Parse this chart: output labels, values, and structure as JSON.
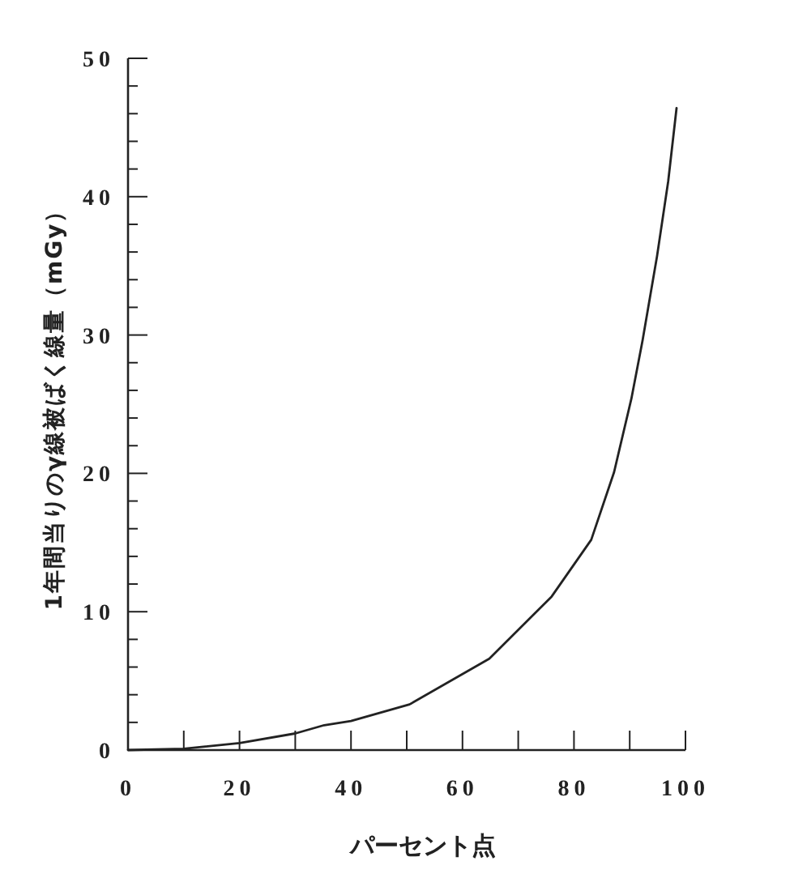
{
  "chart_data": {
    "type": "line",
    "xlabel": "パーセント点",
    "ylabel": "1年間当りのγ線被ばく線量（mGy）",
    "x": [
      0,
      10,
      20,
      30,
      35.2,
      40,
      50.5,
      64.8,
      76,
      83.1,
      87.2,
      90.3,
      92.3,
      94.9,
      96.9,
      98.4
    ],
    "series": [
      {
        "color": "#222222",
        "values": [
          0,
          0.1,
          0.5,
          1.2,
          1.8,
          2.1,
          3.3,
          6.6,
          11.1,
          15.2,
          20.1,
          25.4,
          29.6,
          35.7,
          41.1,
          46.4
        ]
      }
    ],
    "xlim": [
      0,
      100
    ],
    "ylim": [
      0,
      50
    ],
    "xticks": [
      0,
      {
        "value": 10,
        "label": null
      },
      20,
      {
        "value": 30,
        "label": null
      },
      40,
      {
        "value": 50,
        "label": null
      },
      60,
      {
        "value": 70,
        "label": null
      },
      80,
      {
        "value": 90,
        "label": null
      },
      100
    ],
    "yticks": [
      0,
      {
        "value": 2,
        "label": null
      },
      {
        "value": 4,
        "label": null
      },
      {
        "value": 6,
        "label": null
      },
      {
        "value": 8,
        "label": null
      },
      10,
      {
        "value": 12,
        "label": null
      },
      {
        "value": 14,
        "label": null
      },
      {
        "value": 16,
        "label": null
      },
      {
        "value": 18,
        "label": null
      },
      20,
      {
        "value": 22,
        "label": null
      },
      {
        "value": 24,
        "label": null
      },
      {
        "value": 26,
        "label": null
      },
      {
        "value": 28,
        "label": null
      },
      30,
      {
        "value": 32,
        "label": null
      },
      {
        "value": 34,
        "label": null
      },
      {
        "value": 36,
        "label": null
      },
      {
        "value": 38,
        "label": null
      },
      40,
      {
        "value": 42,
        "label": null
      },
      {
        "value": 44,
        "label": null
      },
      {
        "value": 46,
        "label": null
      },
      {
        "value": 48,
        "label": null
      },
      50
    ],
    "grid": false,
    "marker": "none",
    "line_style": "solid"
  }
}
